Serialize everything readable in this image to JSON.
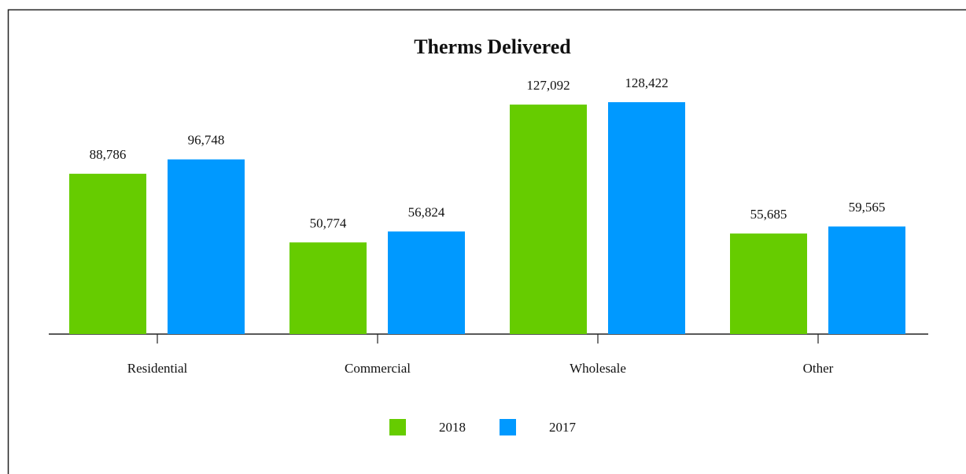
{
  "chart_data": {
    "type": "bar",
    "title": "Therms Delivered",
    "categories": [
      "Residential",
      "Commercial",
      "Wholesale",
      "Other"
    ],
    "series": [
      {
        "name": "2018",
        "color": "#66cc00",
        "values": [
          88786,
          50774,
          127092,
          55685
        ],
        "value_labels": [
          "88,786",
          "50,774",
          "127,092",
          "55,685"
        ]
      },
      {
        "name": "2017",
        "color": "#0099ff",
        "values": [
          96748,
          56824,
          128422,
          59565
        ],
        "value_labels": [
          "96,748",
          "56,824",
          "128,422",
          "59,565"
        ]
      }
    ],
    "legend": "bottom"
  }
}
